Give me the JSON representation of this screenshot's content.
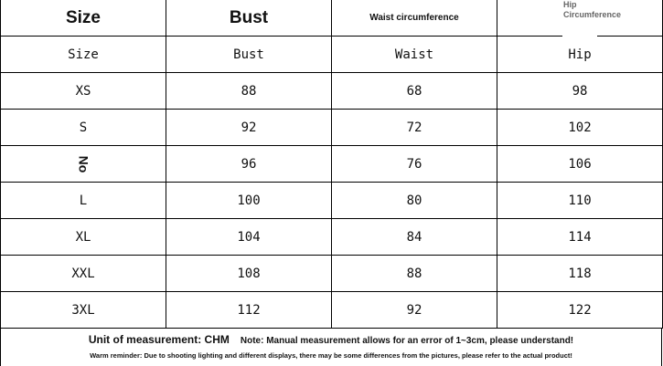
{
  "header": [
    "Size",
    "Bust",
    "Waist circumference",
    "Hip Circumference"
  ],
  "header_hip_lines": [
    "Hip",
    "Circumference"
  ],
  "subheader": [
    "Size",
    "Bust",
    "Waist",
    "Hip"
  ],
  "rows": [
    [
      "XS",
      "88",
      "68",
      "98"
    ],
    [
      "S",
      "92",
      "72",
      "102"
    ],
    [
      "No",
      "96",
      "76",
      "106"
    ],
    [
      "L",
      "100",
      "80",
      "110"
    ],
    [
      "XL",
      "104",
      "84",
      "114"
    ],
    [
      "XXL",
      "108",
      "88",
      "118"
    ],
    [
      "3XL",
      "112",
      "92",
      "122"
    ]
  ],
  "footer": {
    "unit": "Unit of measurement: CHM",
    "note": "Note: Manual measurement allows for an error of 1~3cm, please understand!",
    "reminder": "Warm reminder: Due to shooting lighting and different displays, there may be some differences from the pictures, please refer to the actual product!"
  }
}
